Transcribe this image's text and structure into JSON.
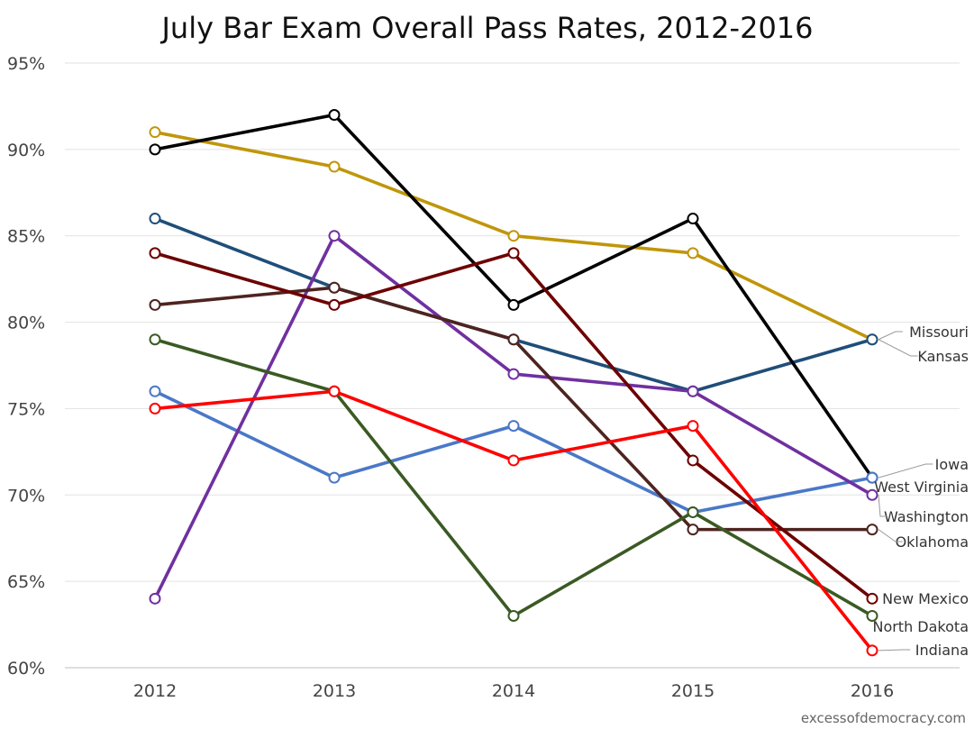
{
  "chart_data": {
    "type": "line",
    "title": "July Bar Exam Overall Pass Rates, 2012-2016",
    "xlabel": "",
    "ylabel": "",
    "x": [
      "2012",
      "2013",
      "2014",
      "2015",
      "2016"
    ],
    "ylim": [
      60,
      95
    ],
    "y_ticks": [
      "60%",
      "65%",
      "70%",
      "75%",
      "80%",
      "85%",
      "90%",
      "95%"
    ],
    "grid": true,
    "legend": "end-of-line labels at right",
    "series": [
      {
        "name": "Missouri",
        "color": "#c0960a",
        "values": [
          91,
          89,
          85,
          84,
          79
        ]
      },
      {
        "name": "Kansas",
        "color": "#1f4e79",
        "values": [
          86,
          82,
          79,
          76,
          79
        ]
      },
      {
        "name": "Iowa",
        "color": "#000000",
        "values": [
          90,
          92,
          81,
          86,
          71
        ]
      },
      {
        "name": "West Virginia",
        "color": "#4a78c8",
        "values": [
          76,
          71,
          74,
          69,
          71
        ]
      },
      {
        "name": "Washington",
        "color": "#7030a0",
        "values": [
          64,
          85,
          77,
          76,
          70
        ]
      },
      {
        "name": "Oklahoma",
        "color": "#4e2420",
        "values": [
          81,
          82,
          79,
          68,
          68
        ]
      },
      {
        "name": "New Mexico",
        "color": "#6e0000",
        "values": [
          84,
          81,
          84,
          72,
          64
        ]
      },
      {
        "name": "North Dakota",
        "color": "#3a5a23",
        "values": [
          79,
          76,
          63,
          69,
          63
        ]
      },
      {
        "name": "Indiana",
        "color": "#ff0000",
        "values": [
          75,
          76,
          72,
          74,
          61
        ]
      }
    ],
    "source": "excessofdemocracy.com"
  }
}
